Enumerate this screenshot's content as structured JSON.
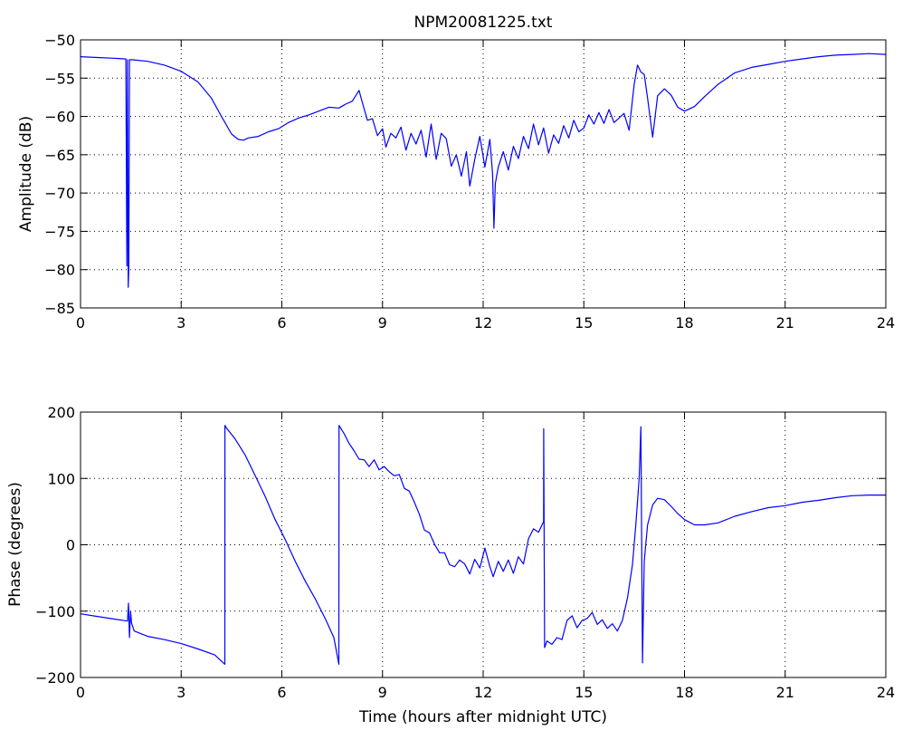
{
  "figure_title": "NPM20081225.txt",
  "chart_data": [
    {
      "type": "line",
      "title": "NPM20081225.txt",
      "xlabel": "",
      "ylabel": "Amplitude (dB)",
      "xlim": [
        0,
        24
      ],
      "ylim": [
        -85,
        -50
      ],
      "xticks": [
        0,
        3,
        6,
        9,
        12,
        15,
        18,
        21,
        24
      ],
      "yticks": [
        -85,
        -80,
        -75,
        -70,
        -65,
        -60,
        -55,
        -50
      ],
      "xtick_labels": [
        "0",
        "3",
        "6",
        "9",
        "12",
        "15",
        "18",
        "21",
        "24"
      ],
      "ytick_labels": [
        "-85",
        "-80",
        "-75",
        "-70",
        "-65",
        "-60",
        "-55",
        "-50"
      ],
      "grid": true,
      "color": "#0000ff",
      "series": [
        {
          "x": [
            0,
            0.5,
            1.0,
            1.35,
            1.38,
            1.4,
            1.42,
            1.44,
            1.46,
            1.48,
            1.5,
            1.52,
            1.55,
            2.0,
            2.5,
            3.0,
            3.5,
            3.9,
            4.2,
            4.5,
            4.7,
            4.85,
            5.0,
            5.3,
            5.6,
            5.9,
            6.2,
            6.5,
            6.8,
            7.1,
            7.4,
            7.7,
            7.9,
            8.1,
            8.3,
            8.45,
            8.55,
            8.7,
            8.85,
            9.0,
            9.1,
            9.25,
            9.4,
            9.55,
            9.7,
            9.85,
            10.0,
            10.15,
            10.3,
            10.45,
            10.6,
            10.75,
            10.9,
            11.05,
            11.2,
            11.35,
            11.5,
            11.6,
            11.75,
            11.9,
            12.05,
            12.2,
            12.28,
            12.32,
            12.36,
            12.45,
            12.6,
            12.75,
            12.9,
            13.05,
            13.2,
            13.35,
            13.5,
            13.65,
            13.8,
            13.95,
            14.1,
            14.25,
            14.4,
            14.55,
            14.7,
            14.85,
            15.0,
            15.15,
            15.3,
            15.45,
            15.6,
            15.75,
            15.9,
            16.05,
            16.2,
            16.35,
            16.5,
            16.6,
            16.7,
            16.8,
            16.9,
            17.05,
            17.2,
            17.4,
            17.6,
            17.8,
            18.0,
            18.3,
            18.6,
            19.0,
            19.5,
            20.0,
            20.5,
            21.0,
            21.5,
            22.0,
            22.5,
            23.0,
            23.5,
            24.0
          ],
          "y": [
            -52.2,
            -52.3,
            -52.4,
            -52.5,
            -79.5,
            -52.6,
            -82.3,
            -79.6,
            -52.6,
            -52.6,
            -52.6,
            -52.6,
            -52.6,
            -52.8,
            -53.3,
            -54.1,
            -55.5,
            -57.6,
            -60.0,
            -62.3,
            -63.0,
            -63.1,
            -62.8,
            -62.6,
            -62.0,
            -61.6,
            -60.8,
            -60.2,
            -59.8,
            -59.3,
            -58.8,
            -58.9,
            -58.4,
            -58.0,
            -56.6,
            -59.0,
            -60.5,
            -60.3,
            -62.5,
            -61.6,
            -64.0,
            -62.2,
            -62.8,
            -61.4,
            -64.4,
            -62.2,
            -63.6,
            -61.8,
            -65.3,
            -61.0,
            -65.6,
            -62.2,
            -62.9,
            -66.5,
            -65.0,
            -67.8,
            -64.6,
            -69.1,
            -65.6,
            -62.6,
            -66.6,
            -63.0,
            -67.5,
            -74.6,
            -68.8,
            -66.6,
            -64.6,
            -67.0,
            -63.9,
            -65.5,
            -62.6,
            -64.2,
            -61.0,
            -63.7,
            -61.5,
            -64.8,
            -62.4,
            -63.5,
            -61.2,
            -62.8,
            -60.5,
            -62.0,
            -61.5,
            -59.8,
            -61.0,
            -59.5,
            -60.9,
            -59.1,
            -60.8,
            -60.2,
            -59.6,
            -61.8,
            -55.8,
            -53.3,
            -54.2,
            -54.5,
            -57.6,
            -62.7,
            -57.3,
            -56.4,
            -57.2,
            -58.8,
            -59.3,
            -58.7,
            -57.4,
            -55.8,
            -54.3,
            -53.6,
            -53.2,
            -52.8,
            -52.5,
            -52.2,
            -52.0,
            -51.9,
            -51.8,
            -51.9
          ]
        }
      ]
    },
    {
      "type": "line",
      "title": "",
      "xlabel": "Time (hours after midnight UTC)",
      "ylabel": "Phase (degrees)",
      "xlim": [
        0,
        24
      ],
      "ylim": [
        -200,
        200
      ],
      "xticks": [
        0,
        3,
        6,
        9,
        12,
        15,
        18,
        21,
        24
      ],
      "yticks": [
        -200,
        -100,
        0,
        100,
        200
      ],
      "xtick_labels": [
        "0",
        "3",
        "6",
        "9",
        "12",
        "15",
        "18",
        "21",
        "24"
      ],
      "ytick_labels": [
        "-200",
        "-100",
        "0",
        "100",
        "200"
      ],
      "grid": true,
      "color": "#0000ff",
      "series": [
        {
          "x": [
            0,
            0.5,
            1.0,
            1.4,
            1.43,
            1.46,
            1.49,
            1.52,
            1.6,
            2.0,
            2.5,
            3.0,
            3.5,
            4.0,
            4.3,
            4.305,
            4.35,
            4.6,
            4.9,
            5.2,
            5.5,
            5.8,
            6.1,
            6.4,
            6.7,
            7.0,
            7.3,
            7.55,
            7.7,
            7.705,
            7.85,
            8.0,
            8.15,
            8.3,
            8.45,
            8.6,
            8.75,
            8.9,
            9.05,
            9.2,
            9.35,
            9.5,
            9.65,
            9.8,
            9.95,
            10.1,
            10.25,
            10.4,
            10.55,
            10.7,
            10.85,
            11.0,
            11.15,
            11.3,
            11.45,
            11.6,
            11.75,
            11.9,
            12.05,
            12.2,
            12.3,
            12.45,
            12.6,
            12.75,
            12.9,
            13.05,
            13.2,
            13.35,
            13.5,
            13.65,
            13.8,
            13.805,
            13.83,
            13.9,
            14.05,
            14.2,
            14.35,
            14.5,
            14.65,
            14.8,
            14.95,
            15.1,
            15.25,
            15.4,
            15.55,
            15.7,
            15.85,
            16.0,
            16.15,
            16.3,
            16.45,
            16.55,
            16.65,
            16.7,
            16.75,
            16.8,
            16.9,
            17.05,
            17.2,
            17.4,
            17.6,
            17.8,
            18.0,
            18.3,
            18.6,
            19.0,
            19.5,
            20.0,
            20.5,
            21.0,
            21.5,
            22.0,
            22.5,
            23.0,
            23.5,
            24.0
          ],
          "y": [
            -104,
            -108,
            -112,
            -115,
            -88,
            -140,
            -100,
            -118,
            -130,
            -138,
            -143,
            -149,
            -157,
            -166,
            -180,
            180,
            176,
            160,
            136,
            105,
            73,
            38,
            8,
            -25,
            -55,
            -82,
            -112,
            -140,
            -180,
            180,
            168,
            153,
            142,
            129,
            128,
            118,
            128,
            113,
            118,
            110,
            104,
            106,
            85,
            81,
            64,
            46,
            22,
            18,
            1,
            -12,
            -12,
            -30,
            -33,
            -23,
            -29,
            -44,
            -22,
            -35,
            -5,
            -33,
            -48,
            -25,
            -40,
            -23,
            -43,
            -18,
            -29,
            9,
            24,
            19,
            35,
            175,
            -155,
            -145,
            -150,
            -140,
            -143,
            -114,
            -107,
            -125,
            -114,
            -111,
            -102,
            -120,
            -113,
            -126,
            -119,
            -130,
            -114,
            -80,
            -30,
            30,
            100,
            178,
            -178,
            -25,
            30,
            60,
            70,
            68,
            58,
            47,
            38,
            30,
            30,
            33,
            43,
            50,
            56,
            59,
            64,
            67,
            71,
            74,
            75,
            75
          ]
        }
      ]
    }
  ]
}
